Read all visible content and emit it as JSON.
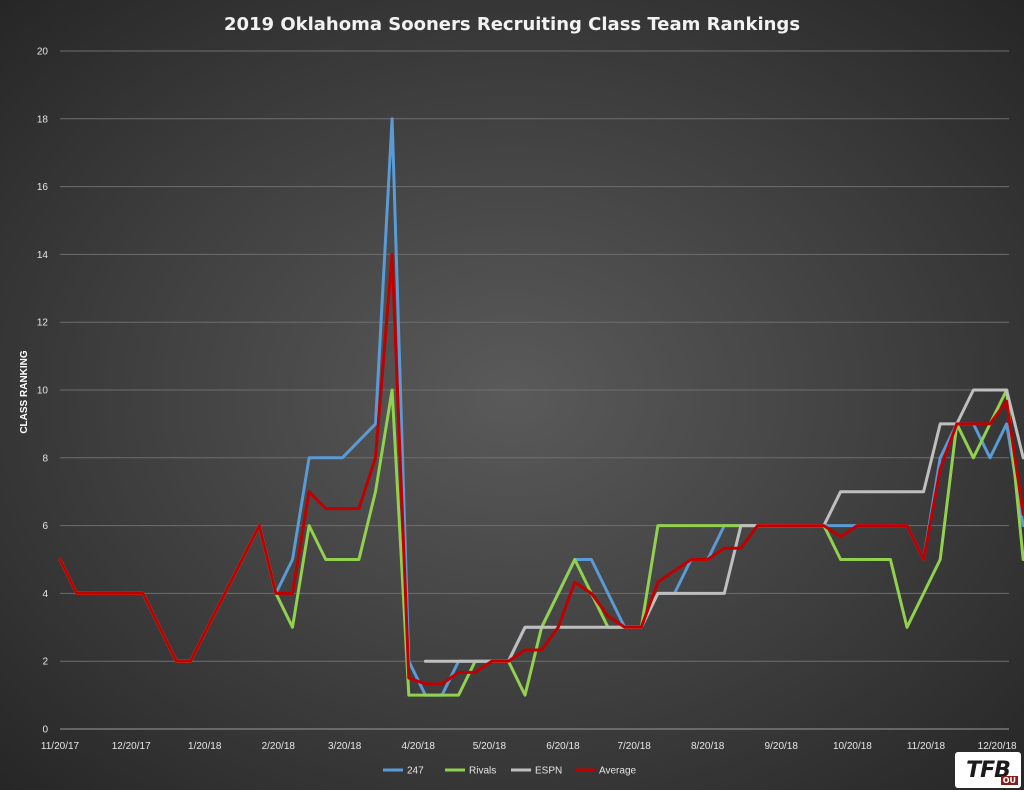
{
  "chart_data": {
    "type": "line",
    "title": "2019 Oklahoma Sooners Recruiting Class Team Rankings",
    "xlabel": "",
    "ylabel": "CLASS RANKING",
    "ylim": [
      0,
      20
    ],
    "yticks": [
      0,
      2,
      4,
      6,
      8,
      10,
      12,
      14,
      16,
      18,
      20
    ],
    "xlim": [
      "2017-11-20",
      "2018-12-25"
    ],
    "xticks": [
      "11/20/17",
      "12/20/17",
      "1/20/18",
      "2/20/18",
      "3/20/18",
      "4/20/18",
      "5/20/18",
      "6/20/18",
      "7/20/18",
      "8/20/18",
      "9/20/18",
      "10/20/18",
      "11/20/18",
      "12/20/18"
    ],
    "grid": true,
    "legend_position": "bottom",
    "series": [
      {
        "name": "247",
        "color": "#5b9bd5",
        "points": [
          [
            "2017-11-20",
            5
          ],
          [
            "2017-11-27",
            4
          ],
          [
            "2017-12-25",
            4
          ],
          [
            "2018-01-08",
            2
          ],
          [
            "2018-01-14",
            2
          ],
          [
            "2018-02-12",
            6
          ],
          [
            "2018-02-19",
            4
          ],
          [
            "2018-02-26",
            5
          ],
          [
            "2018-03-05",
            8
          ],
          [
            "2018-03-19",
            8
          ],
          [
            "2018-04-02",
            9
          ],
          [
            "2018-04-09",
            18
          ],
          [
            "2018-04-16",
            2
          ],
          [
            "2018-04-23",
            1
          ],
          [
            "2018-04-30",
            1
          ],
          [
            "2018-05-07",
            2
          ],
          [
            "2018-05-21",
            2
          ],
          [
            "2018-05-28",
            2
          ],
          [
            "2018-06-04",
            3
          ],
          [
            "2018-06-11",
            3
          ],
          [
            "2018-06-25",
            5
          ],
          [
            "2018-07-02",
            5
          ],
          [
            "2018-07-09",
            4
          ],
          [
            "2018-07-16",
            3
          ],
          [
            "2018-07-23",
            3
          ],
          [
            "2018-07-30",
            4
          ],
          [
            "2018-08-06",
            4
          ],
          [
            "2018-08-13",
            5
          ],
          [
            "2018-08-20",
            5
          ],
          [
            "2018-08-27",
            6
          ],
          [
            "2018-09-10",
            6
          ],
          [
            "2018-09-17",
            6
          ],
          [
            "2018-10-15",
            6
          ],
          [
            "2018-11-12",
            6
          ],
          [
            "2018-11-19",
            5
          ],
          [
            "2018-11-26",
            8
          ],
          [
            "2018-12-03",
            9
          ],
          [
            "2018-12-10",
            9
          ],
          [
            "2018-12-17",
            8
          ],
          [
            "2018-12-24",
            9
          ],
          [
            "2018-12-31",
            6
          ]
        ]
      },
      {
        "name": "Rivals",
        "color": "#92d050",
        "points": [
          [
            "2017-11-20",
            5
          ],
          [
            "2017-11-27",
            4
          ],
          [
            "2017-12-25",
            4
          ],
          [
            "2018-01-08",
            2
          ],
          [
            "2018-01-14",
            2
          ],
          [
            "2018-02-12",
            6
          ],
          [
            "2018-02-19",
            4
          ],
          [
            "2018-02-26",
            3
          ],
          [
            "2018-03-05",
            6
          ],
          [
            "2018-03-12",
            5
          ],
          [
            "2018-03-26",
            5
          ],
          [
            "2018-04-02",
            7
          ],
          [
            "2018-04-09",
            10
          ],
          [
            "2018-04-16",
            1
          ],
          [
            "2018-05-07",
            1
          ],
          [
            "2018-05-14",
            2
          ],
          [
            "2018-05-28",
            2
          ],
          [
            "2018-06-04",
            1
          ],
          [
            "2018-06-11",
            3
          ],
          [
            "2018-06-25",
            5
          ],
          [
            "2018-07-09",
            3
          ],
          [
            "2018-07-23",
            3
          ],
          [
            "2018-07-30",
            6
          ],
          [
            "2018-09-17",
            6
          ],
          [
            "2018-10-08",
            6
          ],
          [
            "2018-10-15",
            5
          ],
          [
            "2018-11-05",
            5
          ],
          [
            "2018-11-12",
            3
          ],
          [
            "2018-11-26",
            5
          ],
          [
            "2018-12-03",
            9
          ],
          [
            "2018-12-10",
            8
          ],
          [
            "2018-12-17",
            9
          ],
          [
            "2018-12-24",
            10
          ],
          [
            "2018-12-31",
            5
          ]
        ]
      },
      {
        "name": "ESPN",
        "color": "#bfbfbf",
        "points": [
          [
            "2018-04-23",
            2
          ],
          [
            "2018-05-28",
            2
          ],
          [
            "2018-06-04",
            3
          ],
          [
            "2018-07-23",
            3
          ],
          [
            "2018-07-30",
            4
          ],
          [
            "2018-08-27",
            4
          ],
          [
            "2018-09-03",
            6
          ],
          [
            "2018-10-08",
            6
          ],
          [
            "2018-10-15",
            7
          ],
          [
            "2018-11-19",
            7
          ],
          [
            "2018-11-26",
            9
          ],
          [
            "2018-12-03",
            9
          ],
          [
            "2018-12-10",
            10
          ],
          [
            "2018-12-24",
            10
          ],
          [
            "2018-12-31",
            8
          ]
        ]
      },
      {
        "name": "Average",
        "color": "#c00000",
        "points": [
          [
            "2017-11-20",
            5
          ],
          [
            "2017-11-27",
            4
          ],
          [
            "2017-12-25",
            4
          ],
          [
            "2018-01-08",
            2
          ],
          [
            "2018-01-14",
            2
          ],
          [
            "2018-02-12",
            6
          ],
          [
            "2018-02-19",
            4
          ],
          [
            "2018-02-26",
            4
          ],
          [
            "2018-03-05",
            7
          ],
          [
            "2018-03-12",
            6.5
          ],
          [
            "2018-03-26",
            6.5
          ],
          [
            "2018-04-02",
            8
          ],
          [
            "2018-04-09",
            14
          ],
          [
            "2018-04-16",
            1.5
          ],
          [
            "2018-04-23",
            1.33
          ],
          [
            "2018-04-30",
            1.33
          ],
          [
            "2018-05-07",
            1.67
          ],
          [
            "2018-05-14",
            1.67
          ],
          [
            "2018-05-21",
            2
          ],
          [
            "2018-05-28",
            2
          ],
          [
            "2018-06-04",
            2.33
          ],
          [
            "2018-06-11",
            2.33
          ],
          [
            "2018-06-18",
            3
          ],
          [
            "2018-06-25",
            4.33
          ],
          [
            "2018-07-02",
            4
          ],
          [
            "2018-07-09",
            3.33
          ],
          [
            "2018-07-16",
            3
          ],
          [
            "2018-07-23",
            3
          ],
          [
            "2018-07-30",
            4.33
          ],
          [
            "2018-08-06",
            4.67
          ],
          [
            "2018-08-13",
            5
          ],
          [
            "2018-08-20",
            5
          ],
          [
            "2018-08-27",
            5.33
          ],
          [
            "2018-09-03",
            5.33
          ],
          [
            "2018-09-10",
            6
          ],
          [
            "2018-10-08",
            6
          ],
          [
            "2018-10-15",
            5.67
          ],
          [
            "2018-10-22",
            6
          ],
          [
            "2018-11-12",
            6
          ],
          [
            "2018-11-19",
            5
          ],
          [
            "2018-11-26",
            7.67
          ],
          [
            "2018-12-03",
            9
          ],
          [
            "2018-12-10",
            9
          ],
          [
            "2018-12-17",
            9
          ],
          [
            "2018-12-24",
            9.67
          ],
          [
            "2018-12-31",
            6.33
          ]
        ]
      }
    ]
  },
  "logo": {
    "text": "TFB",
    "sub": "OU"
  }
}
